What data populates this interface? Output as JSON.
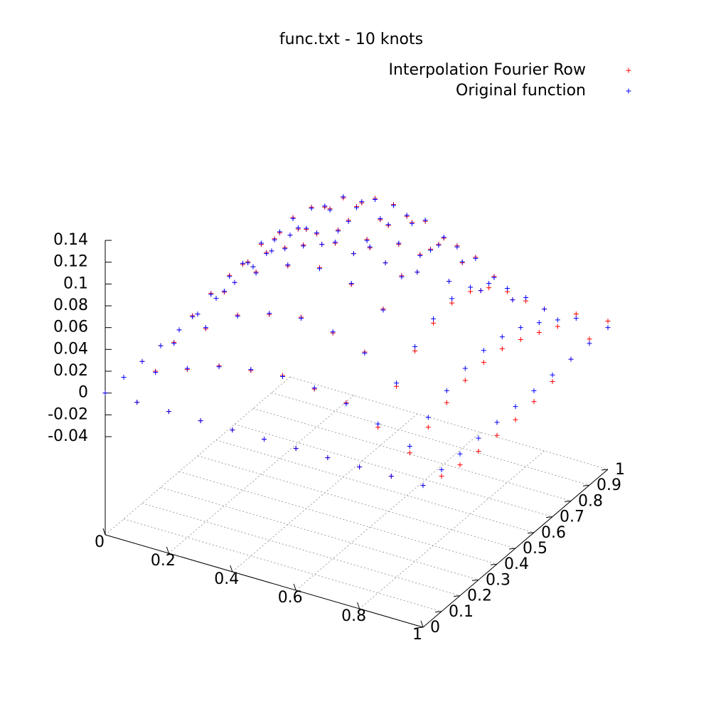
{
  "chart_data": {
    "type": "scatter3d",
    "title": "func.txt - 10 knots",
    "x": [
      0,
      0.1,
      0.2,
      0.3,
      0.4,
      0.5,
      0.6,
      0.7,
      0.8,
      0.9,
      1
    ],
    "y": [
      0,
      0.1,
      0.2,
      0.3,
      0.4,
      0.5,
      0.6,
      0.7,
      0.8,
      0.9,
      1
    ],
    "series": [
      {
        "name": "Interpolation Fourier Row",
        "color": "#ff0000",
        "values": [
          [
            0,
            0,
            0,
            0,
            0,
            0,
            0,
            0,
            0,
            0,
            0
          ],
          [
            0,
            0.014,
            0.026,
            0.036,
            0.042,
            0.044,
            0.042,
            0.036,
            0.026,
            0.014,
            0
          ],
          [
            0,
            0.024,
            0.047,
            0.066,
            0.077,
            0.081,
            0.077,
            0.066,
            0.047,
            0.024,
            0
          ],
          [
            0,
            0.036,
            0.068,
            0.093,
            0.109,
            0.114,
            0.109,
            0.093,
            0.068,
            0.036,
            0
          ],
          [
            0,
            0.04,
            0.077,
            0.107,
            0.126,
            0.132,
            0.126,
            0.107,
            0.077,
            0.04,
            0
          ],
          [
            0,
            0.044,
            0.083,
            0.114,
            0.134,
            0.141,
            0.134,
            0.114,
            0.083,
            0.044,
            0
          ],
          [
            0,
            0.04,
            0.077,
            0.107,
            0.126,
            0.132,
            0.126,
            0.107,
            0.077,
            0.04,
            0
          ],
          [
            0,
            0.036,
            0.068,
            0.093,
            0.109,
            0.114,
            0.109,
            0.093,
            0.068,
            0.036,
            0
          ],
          [
            0,
            0.022,
            0.045,
            0.063,
            0.074,
            0.078,
            0.074,
            0.063,
            0.045,
            0.022,
            0
          ],
          [
            0,
            0.007,
            0.016,
            0.024,
            0.03,
            0.032,
            0.03,
            0.024,
            0.016,
            0.007,
            0.004
          ],
          [
            0,
            -0.006,
            -0.01,
            -0.012,
            -0.012,
            -0.012,
            -0.01,
            -0.006,
            0,
            0.004,
            0.006
          ]
        ]
      },
      {
        "name": "Original function",
        "color": "#0000ff",
        "values": [
          [
            0,
            0,
            0,
            0,
            0,
            0,
            0,
            0,
            0,
            0,
            0
          ],
          [
            0,
            0.013,
            0.025,
            0.035,
            0.041,
            0.043,
            0.041,
            0.035,
            0.025,
            0.013,
            0
          ],
          [
            0,
            0.025,
            0.048,
            0.067,
            0.078,
            0.082,
            0.078,
            0.067,
            0.048,
            0.025,
            0
          ],
          [
            0,
            0.035,
            0.067,
            0.092,
            0.108,
            0.113,
            0.108,
            0.092,
            0.067,
            0.035,
            0
          ],
          [
            0,
            0.041,
            0.078,
            0.108,
            0.127,
            0.133,
            0.127,
            0.108,
            0.078,
            0.041,
            0
          ],
          [
            0,
            0.043,
            0.082,
            0.113,
            0.133,
            0.14,
            0.133,
            0.113,
            0.082,
            0.043,
            0
          ],
          [
            0,
            0.041,
            0.078,
            0.108,
            0.127,
            0.133,
            0.127,
            0.108,
            0.078,
            0.041,
            0
          ],
          [
            0,
            0.035,
            0.067,
            0.092,
            0.108,
            0.113,
            0.108,
            0.092,
            0.067,
            0.035,
            0
          ],
          [
            0,
            0.025,
            0.048,
            0.067,
            0.078,
            0.082,
            0.078,
            0.067,
            0.048,
            0.025,
            0
          ],
          [
            0,
            0.013,
            0.025,
            0.035,
            0.041,
            0.043,
            0.041,
            0.035,
            0.025,
            0.013,
            0
          ],
          [
            0,
            0,
            0,
            0,
            0,
            0,
            0,
            0,
            0,
            0,
            0
          ]
        ]
      }
    ],
    "xlim": [
      0,
      1
    ],
    "xticks": [
      0,
      0.2,
      0.4,
      0.6,
      0.8,
      1
    ],
    "ylim": [
      0,
      1
    ],
    "yticks": [
      0,
      0.1,
      0.2,
      0.3,
      0.4,
      0.5,
      0.6,
      0.7,
      0.8,
      0.9,
      1
    ],
    "zlim": [
      -0.04,
      0.14
    ],
    "zticks": [
      -0.04,
      -0.02,
      0,
      0.02,
      0.04,
      0.06,
      0.08,
      0.1,
      0.12,
      0.14
    ],
    "grid": true,
    "legend": "top-right"
  }
}
